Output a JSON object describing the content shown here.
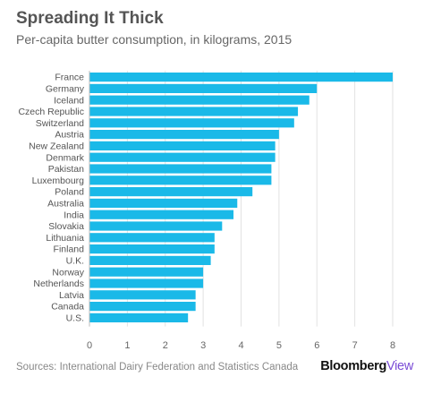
{
  "chart_data": {
    "type": "bar",
    "orientation": "horizontal",
    "title": "Spreading It Thick",
    "subtitle": "Per-capita butter consumption, in kilograms, 2015",
    "categories": [
      "France",
      "Germany",
      "Iceland",
      "Czech Republic",
      "Switzerland",
      "Austria",
      "New Zealand",
      "Denmark",
      "Pakistan",
      "Luxembourg",
      "Poland",
      "Australia",
      "India",
      "Slovakia",
      "Lithuania",
      "Finland",
      "U.K.",
      "Norway",
      "Netherlands",
      "Latvia",
      "Canada",
      "U.S."
    ],
    "values": [
      8.0,
      6.0,
      5.8,
      5.5,
      5.4,
      5.0,
      4.9,
      4.9,
      4.8,
      4.8,
      4.3,
      3.9,
      3.8,
      3.5,
      3.3,
      3.3,
      3.2,
      3.0,
      3.0,
      2.8,
      2.8,
      2.6
    ],
    "xlim": [
      0,
      8
    ],
    "xticks": [
      "0",
      "1",
      "2",
      "3",
      "4",
      "5",
      "6",
      "7",
      "8"
    ],
    "bar_color": "#1ab9e8",
    "grid": true
  },
  "footer": {
    "source": "Sources: International Dairy Federation and Statistics Canada",
    "brand_main": "Bloomberg",
    "brand_accent": "View"
  }
}
